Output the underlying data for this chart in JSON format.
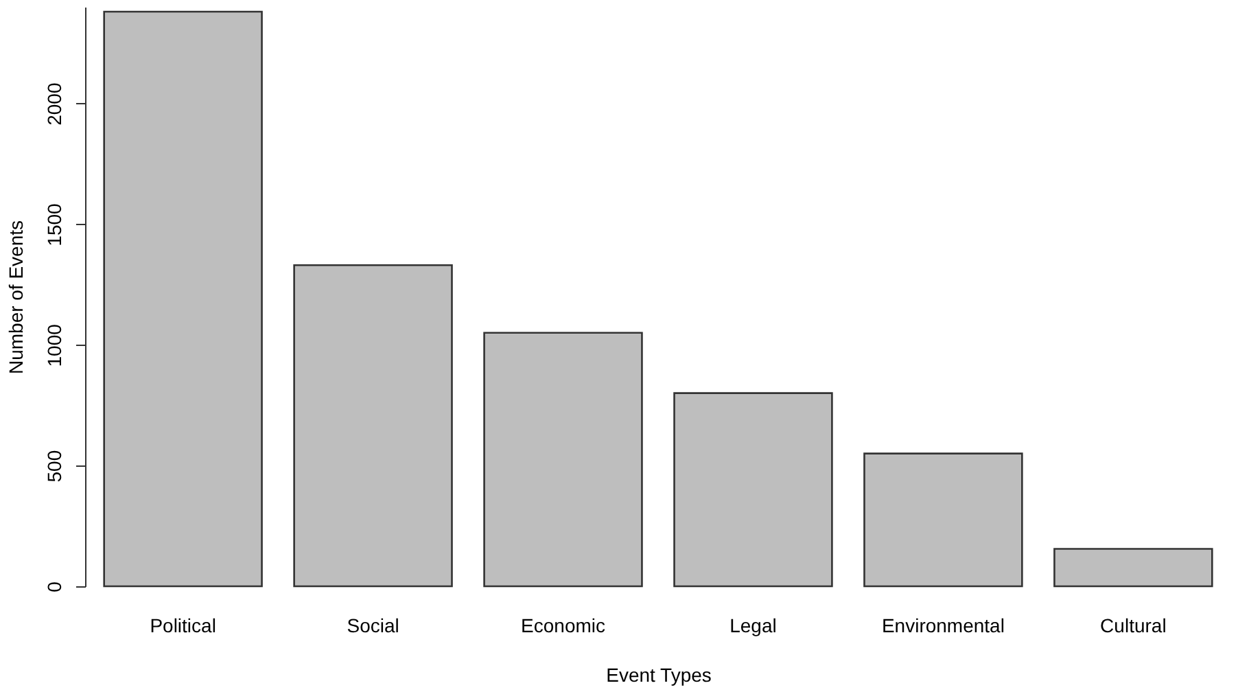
{
  "chart_data": {
    "type": "bar",
    "xlabel": "Event Types",
    "ylabel": "Number of Events",
    "categories": [
      "Political",
      "Social",
      "Economic",
      "Legal",
      "Environmental",
      "Cultural"
    ],
    "values": [
      2380,
      1330,
      1050,
      800,
      550,
      155
    ],
    "color": "#bebebe",
    "ylim": [
      0,
      2400
    ],
    "yticks": [
      0,
      500,
      1000,
      1500,
      2000
    ],
    "grid": false
  }
}
